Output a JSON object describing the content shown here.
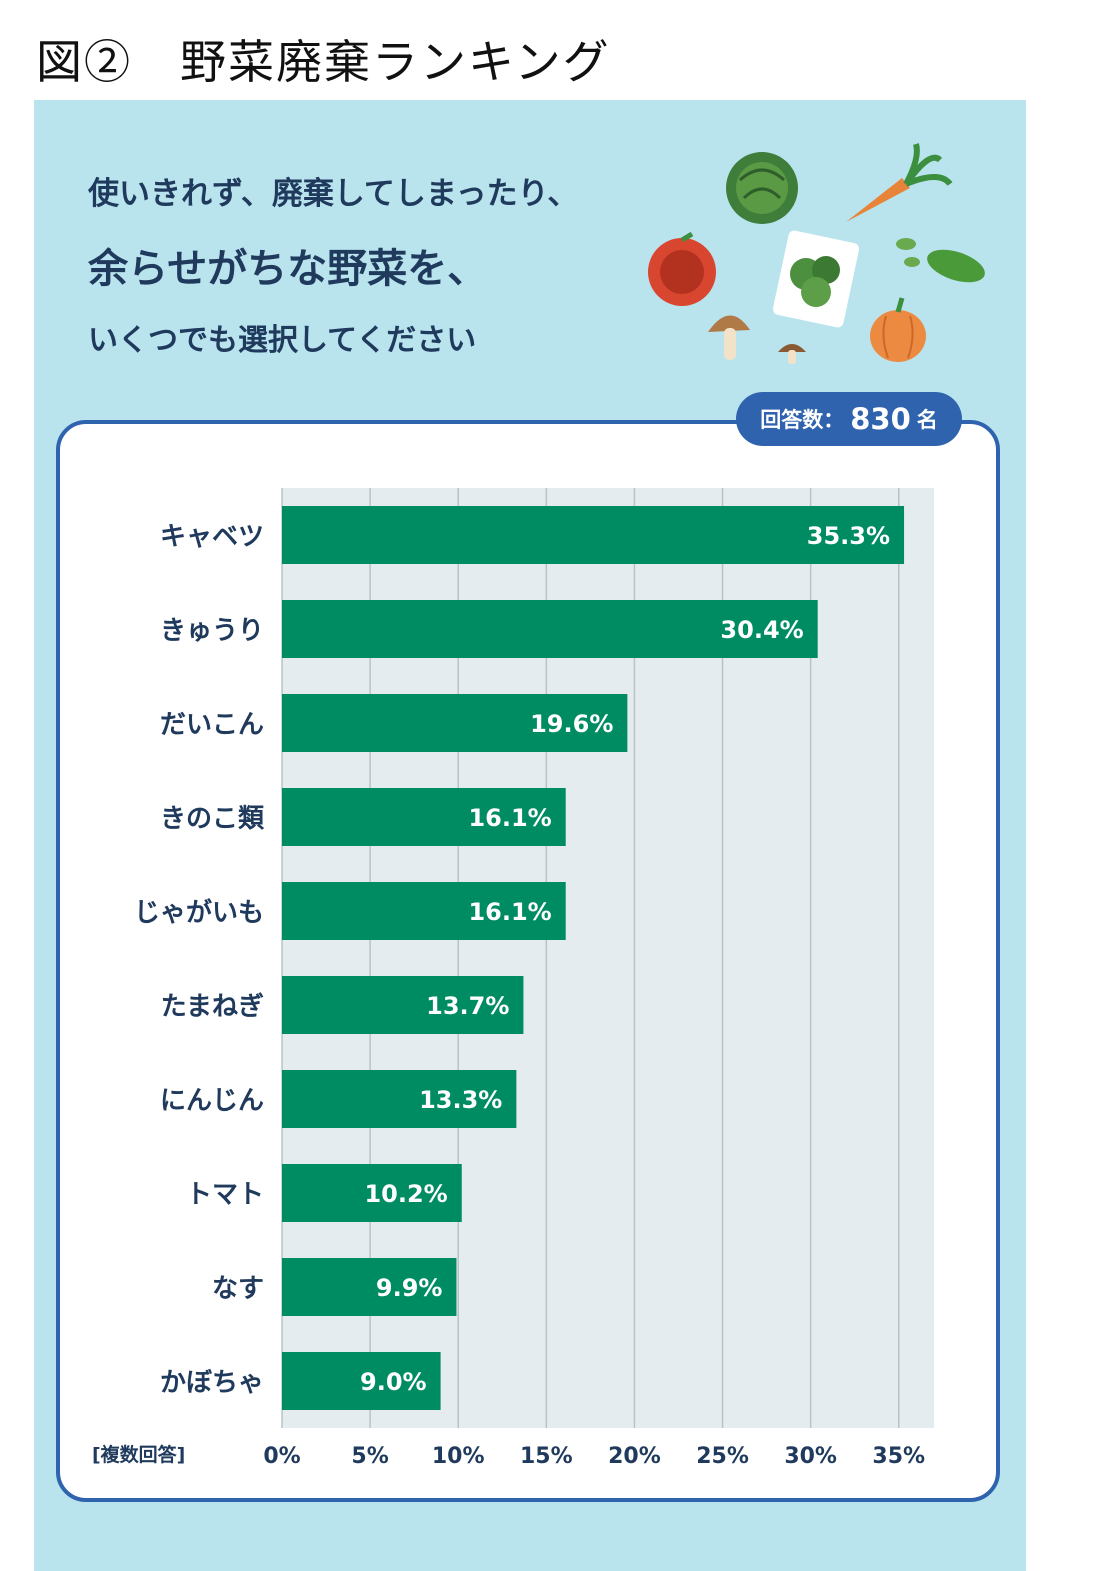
{
  "figure_title": "図②　野菜廃棄ランキング",
  "question": {
    "line1": "使いきれず、廃棄してしまったり、",
    "line2": "余らせがちな野菜を、",
    "line3": "いくつでも選択してください"
  },
  "respondents": {
    "label": "回答数：",
    "count": "830",
    "unit": "名"
  },
  "note": "[複数回答]",
  "colors": {
    "bar": "#008c62",
    "panel": "#b9e4ee",
    "card_border": "#2f63ae",
    "plot_bg": "#e4ecef",
    "text": "#1f3a5c"
  },
  "chart_data": {
    "type": "bar",
    "orientation": "horizontal",
    "categories": [
      "キャベツ",
      "きゅうり",
      "だいこん",
      "きのこ類",
      "じゃがいも",
      "たまねぎ",
      "にんじん",
      "トマト",
      "なす",
      "かぼちゃ"
    ],
    "values": [
      35.3,
      30.4,
      19.6,
      16.1,
      16.1,
      13.7,
      13.3,
      10.2,
      9.9,
      9.0
    ],
    "value_labels": [
      "35.3%",
      "30.4%",
      "19.6%",
      "16.1%",
      "16.1%",
      "13.7%",
      "13.3%",
      "10.2%",
      "9.9%",
      "9.0%"
    ],
    "x_ticks": [
      "0%",
      "5%",
      "10%",
      "15%",
      "20%",
      "25%",
      "30%",
      "35%"
    ],
    "xlim": [
      0,
      37
    ],
    "grid": true
  }
}
